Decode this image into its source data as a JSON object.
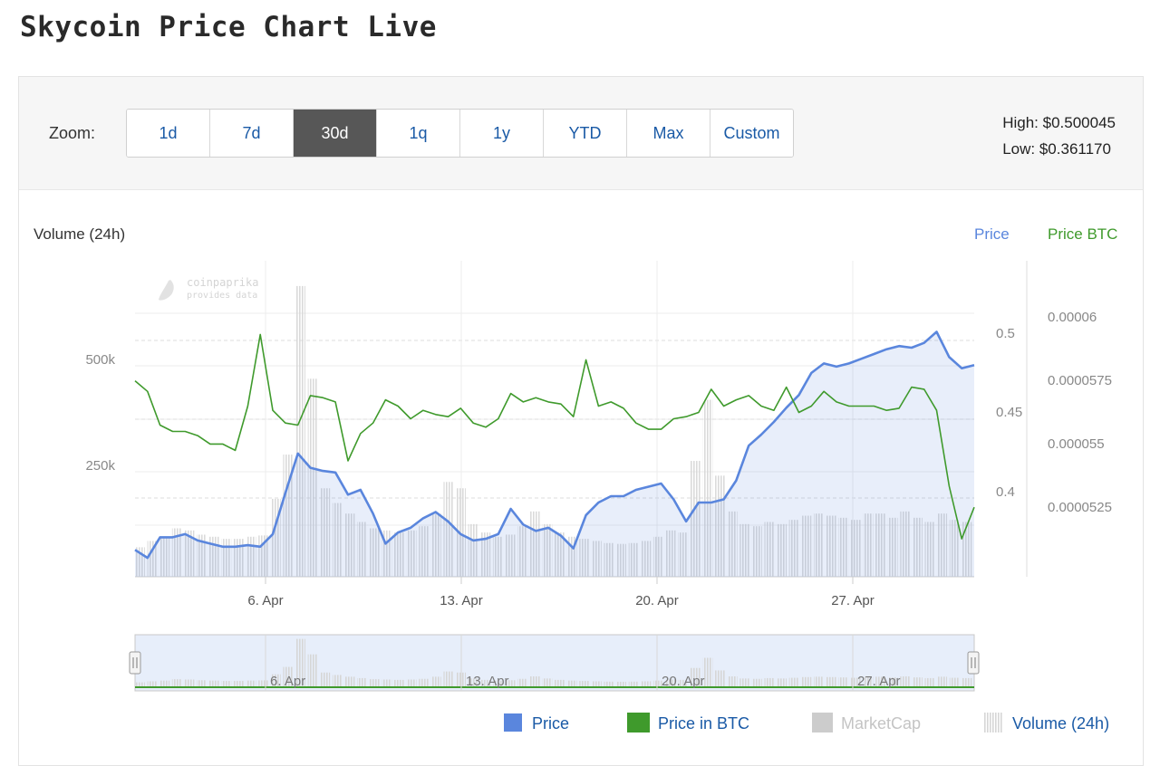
{
  "page": {
    "title": "Skycoin Price Chart Live"
  },
  "toolbar": {
    "zoom_label": "Zoom:",
    "buttons": [
      "1d",
      "7d",
      "30d",
      "1q",
      "1y",
      "YTD",
      "Max",
      "Custom"
    ],
    "active": "30d",
    "high": "High: $0.500045",
    "low": "Low: $0.361170"
  },
  "colors": {
    "price": "#5a86dd",
    "price_btc": "#3f9a2c",
    "marketcap": "#cccccc",
    "volume": "#d6d6d6",
    "active_button": "#575757",
    "link": "#1a5aa6"
  },
  "chart_data": {
    "type": "line",
    "axis_titles": {
      "left": "Volume (24h)",
      "right1": "Price",
      "right2": "Price BTC"
    },
    "x_ticks": [
      "6. Apr",
      "13. Apr",
      "20. Apr",
      "27. Apr"
    ],
    "x_range": [
      "31. Mar",
      "1. May"
    ],
    "volume_ticks": [
      "250k",
      "500k"
    ],
    "price_ticks": [
      "0.4",
      "0.45",
      "0.5"
    ],
    "btc_ticks": [
      "0.0000525",
      "0.000055",
      "0.0000575",
      "0.00006"
    ],
    "watermark": {
      "line1": "coinpaprika",
      "line2": "provides data"
    },
    "series": [
      {
        "name": "Price",
        "axis": "price",
        "ylim": [
          0.345,
          0.545
        ],
        "values": [
          0.362,
          0.357,
          0.37,
          0.37,
          0.372,
          0.368,
          0.366,
          0.364,
          0.364,
          0.365,
          0.364,
          0.372,
          0.398,
          0.423,
          0.414,
          0.412,
          0.411,
          0.397,
          0.4,
          0.385,
          0.366,
          0.373,
          0.376,
          0.382,
          0.386,
          0.38,
          0.372,
          0.368,
          0.369,
          0.372,
          0.388,
          0.378,
          0.374,
          0.376,
          0.371,
          0.363,
          0.384,
          0.392,
          0.396,
          0.396,
          0.4,
          0.402,
          0.404,
          0.394,
          0.38,
          0.392,
          0.392,
          0.394,
          0.406,
          0.428,
          0.435,
          0.443,
          0.452,
          0.46,
          0.474,
          0.48,
          0.478,
          0.48,
          0.483,
          0.486,
          0.489,
          0.491,
          0.49,
          0.493,
          0.5,
          0.484,
          0.477,
          0.479
        ]
      },
      {
        "name": "Price in BTC",
        "axis": "btc",
        "ylim": [
          4.87e-05,
          6.37e-05
        ],
        "values": [
          5.8e-05,
          5.75e-05,
          5.59e-05,
          5.56e-05,
          5.56e-05,
          5.54e-05,
          5.5e-05,
          5.5e-05,
          5.47e-05,
          5.68e-05,
          6.02e-05,
          5.66e-05,
          5.6e-05,
          5.59e-05,
          5.73e-05,
          5.72e-05,
          5.7e-05,
          5.42e-05,
          5.55e-05,
          5.6e-05,
          5.71e-05,
          5.68e-05,
          5.62e-05,
          5.66e-05,
          5.64e-05,
          5.63e-05,
          5.67e-05,
          5.6e-05,
          5.58e-05,
          5.62e-05,
          5.74e-05,
          5.7e-05,
          5.72e-05,
          5.7e-05,
          5.69e-05,
          5.63e-05,
          5.9e-05,
          5.68e-05,
          5.7e-05,
          5.67e-05,
          5.6e-05,
          5.57e-05,
          5.57e-05,
          5.62e-05,
          5.63e-05,
          5.65e-05,
          5.76e-05,
          5.68e-05,
          5.71e-05,
          5.73e-05,
          5.68e-05,
          5.66e-05,
          5.77e-05,
          5.65e-05,
          5.68e-05,
          5.75e-05,
          5.7e-05,
          5.68e-05,
          5.68e-05,
          5.68e-05,
          5.66e-05,
          5.67e-05,
          5.77e-05,
          5.76e-05,
          5.66e-05,
          5.3e-05,
          5.05e-05,
          5.2e-05
        ]
      },
      {
        "name": "Volume (24h)",
        "axis": "volume",
        "ylim": [
          0,
          750000
        ],
        "values": [
          70000,
          85000,
          95000,
          115000,
          110000,
          100000,
          95000,
          90000,
          90000,
          95000,
          98000,
          185000,
          290000,
          690000,
          470000,
          210000,
          175000,
          150000,
          130000,
          115000,
          110000,
          105000,
          110000,
          120000,
          150000,
          225000,
          210000,
          125000,
          105000,
          95000,
          100000,
          120000,
          155000,
          125000,
          105000,
          95000,
          90000,
          85000,
          80000,
          78000,
          80000,
          85000,
          95000,
          110000,
          105000,
          275000,
          420000,
          240000,
          155000,
          125000,
          120000,
          130000,
          125000,
          135000,
          145000,
          150000,
          145000,
          140000,
          135000,
          150000,
          150000,
          140000,
          155000,
          140000,
          130000,
          150000,
          135000,
          130000
        ]
      },
      {
        "name": "MarketCap",
        "axis": "marketcap",
        "values": []
      }
    ],
    "legend": [
      "Price",
      "Price in BTC",
      "MarketCap",
      "Volume (24h)"
    ],
    "legend_placement": "bottom-right",
    "grid": true
  }
}
